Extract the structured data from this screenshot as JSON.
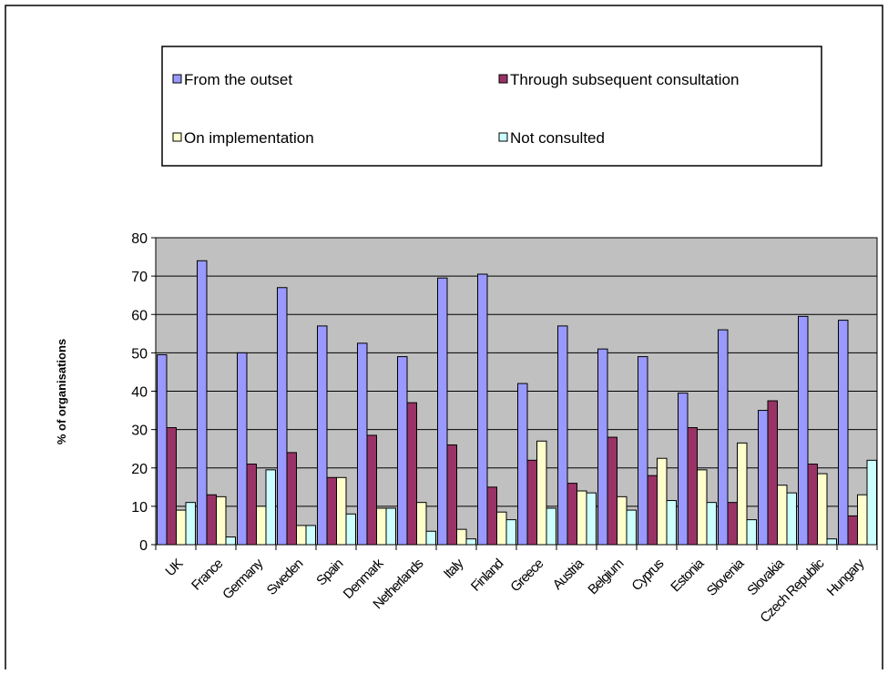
{
  "chart_data": {
    "type": "bar",
    "title": "",
    "xlabel": "",
    "ylabel": "% of organisations",
    "ylim": [
      0,
      80
    ],
    "yticks": [
      0,
      10,
      20,
      30,
      40,
      50,
      60,
      70,
      80
    ],
    "grid": true,
    "legend_position": "top",
    "categories": [
      "UK",
      "France",
      "Germany",
      "Sweden",
      "Spain",
      "Denmark",
      "Netherlands",
      "Italy",
      "Finland",
      "Greece",
      "Austria",
      "Belgium",
      "Cyprus",
      "Estonia",
      "Slovenia",
      "Slovakia",
      "Czech Republic",
      "Hungary"
    ],
    "series": [
      {
        "name": "From the outset",
        "color": "#9999ff",
        "values": [
          49.5,
          74,
          50,
          67,
          57,
          52.5,
          49,
          69.5,
          70.5,
          42,
          57,
          51,
          49,
          39.5,
          56,
          35,
          59.5,
          58.5
        ]
      },
      {
        "name": "Through subsequent consultation",
        "color": "#993366",
        "values": [
          30.5,
          13,
          21,
          24,
          17.5,
          28.5,
          37,
          26,
          15,
          22,
          16,
          28,
          18,
          30.5,
          11,
          37.5,
          21,
          7.5
        ]
      },
      {
        "name": "On implementation",
        "color": "#ffffcc",
        "values": [
          9,
          12.5,
          10,
          5,
          17.5,
          9.5,
          11,
          4,
          8.5,
          27,
          14,
          12.5,
          22.5,
          19.5,
          26.5,
          15.5,
          18.5,
          13
        ]
      },
      {
        "name": "Not consulted",
        "color": "#ccffff",
        "values": [
          11,
          2,
          19.5,
          5,
          8,
          9.5,
          3.5,
          1.5,
          6.5,
          9.5,
          13.5,
          9,
          11.5,
          11,
          6.5,
          13.5,
          1.5,
          22
        ]
      }
    ],
    "plot_background": "#c0c0c0"
  }
}
